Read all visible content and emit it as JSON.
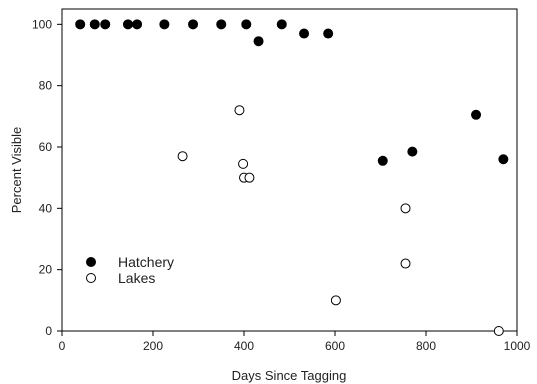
{
  "chart_data": {
    "type": "scatter",
    "title": "",
    "xlabel": "Days Since Tagging",
    "ylabel": "Percent Visible",
    "xlim": [
      0,
      1000
    ],
    "ylim": [
      0,
      105
    ],
    "x_ticks": [
      0,
      200,
      400,
      600,
      800,
      1000
    ],
    "y_ticks": [
      0,
      20,
      40,
      60,
      80,
      100
    ],
    "grid": false,
    "legend_position": "lower-left",
    "series": [
      {
        "name": "Hatchery",
        "marker": "filled-circle",
        "color": "#000000",
        "points": [
          {
            "x": 40,
            "y": 100
          },
          {
            "x": 72,
            "y": 100
          },
          {
            "x": 95,
            "y": 100
          },
          {
            "x": 145,
            "y": 100
          },
          {
            "x": 165,
            "y": 100
          },
          {
            "x": 225,
            "y": 100
          },
          {
            "x": 288,
            "y": 100
          },
          {
            "x": 350,
            "y": 100
          },
          {
            "x": 405,
            "y": 100
          },
          {
            "x": 432,
            "y": 94.5
          },
          {
            "x": 483,
            "y": 100
          },
          {
            "x": 532,
            "y": 97
          },
          {
            "x": 585,
            "y": 97
          },
          {
            "x": 705,
            "y": 55.5
          },
          {
            "x": 770,
            "y": 58.5
          },
          {
            "x": 910,
            "y": 70.5
          },
          {
            "x": 970,
            "y": 56
          }
        ]
      },
      {
        "name": "Lakes",
        "marker": "open-circle",
        "color": "#000000",
        "points": [
          {
            "x": 265,
            "y": 57
          },
          {
            "x": 390,
            "y": 72
          },
          {
            "x": 398,
            "y": 54.5
          },
          {
            "x": 400,
            "y": 50
          },
          {
            "x": 412,
            "y": 50
          },
          {
            "x": 602,
            "y": 10
          },
          {
            "x": 755,
            "y": 40
          },
          {
            "x": 755,
            "y": 22
          },
          {
            "x": 960,
            "y": 0
          }
        ]
      }
    ]
  }
}
